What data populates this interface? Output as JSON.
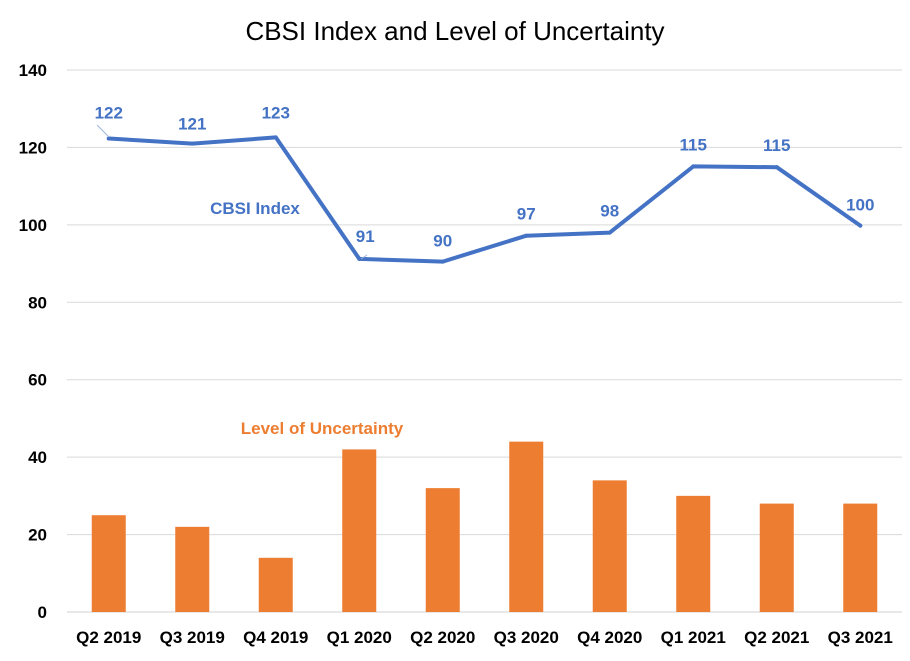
{
  "chart_data": {
    "type": "bar+line",
    "title": "CBSI Index and Level of Uncertainty",
    "categories": [
      "Q2 2019",
      "Q3 2019",
      "Q4 2019",
      "Q1 2020",
      "Q2 2020",
      "Q3 2020",
      "Q4 2020",
      "Q1 2021",
      "Q2 2021",
      "Q3 2021"
    ],
    "ylim": [
      0,
      140
    ],
    "yticks": [
      0,
      20,
      40,
      60,
      80,
      100,
      120,
      140
    ],
    "grid": true,
    "series": [
      {
        "name": "CBSI Index",
        "type": "line",
        "color": "#4472C4",
        "values": [
          122.3,
          121,
          122.6,
          91.2,
          90.5,
          97.2,
          98,
          115.1,
          114.9,
          99.8
        ],
        "labels": [
          "122",
          "121",
          "123",
          "91",
          "90",
          "97",
          "98",
          "115",
          "115",
          "100"
        ]
      },
      {
        "name": "Level of Uncertainty",
        "type": "bar",
        "color": "#ED7D31",
        "values": [
          25,
          22,
          14,
          42,
          32,
          44,
          34,
          30,
          28,
          28
        ]
      }
    ]
  }
}
